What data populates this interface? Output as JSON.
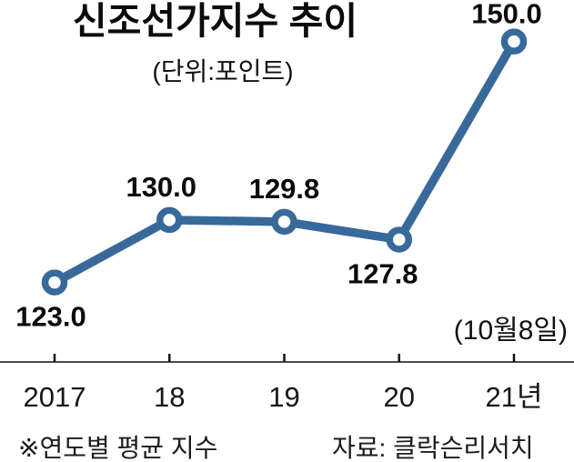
{
  "footer": {
    "footnote": "※연도별 평균 지수",
    "source": "자료: 클락슨리서치"
  },
  "colors": {
    "line": "#38699b",
    "axis": "#4a4a4a",
    "tick": "#111111",
    "label_text": "#0b0b0b",
    "axis_label_text": "#161616"
  },
  "chart_data": {
    "type": "line",
    "title": "신조선가지수 추이",
    "unit_label": "(단위:포인트)",
    "categories": [
      "2017",
      "18",
      "19",
      "20",
      "21년"
    ],
    "values": [
      123.0,
      130.0,
      129.8,
      127.8,
      150.0
    ],
    "value_labels": [
      "123.0",
      "130.0",
      "129.8",
      "127.8",
      "150.0"
    ],
    "annotation": "(10월8일)",
    "xlabel": "",
    "ylabel": "",
    "ylim": [
      120,
      152
    ],
    "grid": false,
    "legend": "none",
    "marker": "open-circle",
    "line_color": "#38699b"
  }
}
